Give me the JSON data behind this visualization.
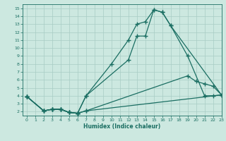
{
  "xlabel": "Humidex (Indice chaleur)",
  "bg_color": "#cce8e0",
  "line_color": "#1a6e62",
  "grid_color": "#a8ccc4",
  "xlim": [
    -0.5,
    23
  ],
  "ylim": [
    1.5,
    15.5
  ],
  "xticks": [
    0,
    1,
    2,
    3,
    4,
    5,
    6,
    7,
    8,
    9,
    10,
    11,
    12,
    13,
    14,
    15,
    16,
    17,
    18,
    19,
    20,
    21,
    22,
    23
  ],
  "yticks": [
    2,
    3,
    4,
    5,
    6,
    7,
    8,
    9,
    10,
    11,
    12,
    13,
    14,
    15
  ],
  "lines": [
    {
      "x": [
        0,
        2,
        3,
        4,
        5,
        6,
        7,
        10,
        12,
        13,
        14,
        15,
        16,
        17,
        19,
        21,
        22,
        23
      ],
      "y": [
        3.9,
        2.1,
        2.3,
        2.3,
        1.9,
        1.8,
        4.0,
        8.0,
        11.0,
        13.0,
        13.3,
        14.8,
        14.5,
        12.8,
        9.0,
        4.0,
        4.0,
        4.1
      ],
      "marker": "+",
      "markersize": 4
    },
    {
      "x": [
        0,
        2,
        3,
        4,
        5,
        6,
        7,
        12,
        13,
        14,
        15,
        16,
        17,
        23
      ],
      "y": [
        3.9,
        2.1,
        2.3,
        2.3,
        1.9,
        1.8,
        4.0,
        8.5,
        11.5,
        11.5,
        14.8,
        14.5,
        12.8,
        4.1
      ],
      "marker": "+",
      "markersize": 4
    },
    {
      "x": [
        0,
        2,
        3,
        4,
        5,
        6,
        7,
        19,
        20,
        21,
        22,
        23
      ],
      "y": [
        3.9,
        2.1,
        2.3,
        2.3,
        1.9,
        1.8,
        2.1,
        6.5,
        5.8,
        5.5,
        5.2,
        4.1
      ],
      "marker": "+",
      "markersize": 4
    },
    {
      "x": [
        0,
        2,
        3,
        4,
        5,
        6,
        7,
        23
      ],
      "y": [
        3.9,
        2.1,
        2.3,
        2.3,
        1.9,
        1.8,
        2.1,
        4.1
      ],
      "marker": "+",
      "markersize": 4
    }
  ]
}
